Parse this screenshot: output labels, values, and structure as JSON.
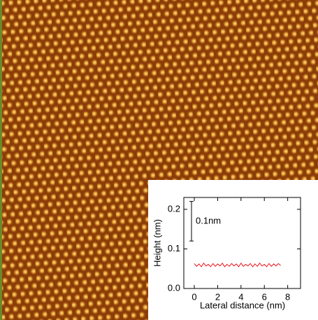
{
  "chart_data": {
    "type": "line",
    "x_label": "Lateral distance (nm)",
    "y_label": "Height (nm)",
    "x": [
      0,
      0.2,
      0.4,
      0.6,
      0.8,
      1.0,
      1.2,
      1.4,
      1.6,
      1.8,
      2.0,
      2.2,
      2.4,
      2.6,
      2.8,
      3.0,
      3.2,
      3.4,
      3.6,
      3.8,
      4.0,
      4.2,
      4.4,
      4.6,
      4.8,
      5.0,
      5.2,
      5.4,
      5.6,
      5.8,
      6.0,
      6.2,
      6.4,
      6.6,
      6.8,
      7.0,
      7.2,
      7.4
    ],
    "series": [
      {
        "color": "#e8141c",
        "values": [
          0.063,
          0.056,
          0.062,
          0.055,
          0.064,
          0.057,
          0.061,
          0.055,
          0.063,
          0.056,
          0.062,
          0.057,
          0.064,
          0.055,
          0.061,
          0.056,
          0.063,
          0.057,
          0.062,
          0.055,
          0.064,
          0.056,
          0.061,
          0.057,
          0.063,
          0.055,
          0.062,
          0.056,
          0.064,
          0.057,
          0.061,
          0.055,
          0.063,
          0.056,
          0.062,
          0.057,
          0.063,
          0.058
        ]
      }
    ],
    "xlim": [
      -0.9,
      9.1
    ],
    "ylim": [
      0,
      0.23
    ],
    "xticks": [
      0,
      2,
      4,
      6,
      8
    ],
    "yticks": [
      {
        "value": 0,
        "label": "0.0"
      },
      0.1,
      0.2
    ],
    "scale_bar": {
      "value": 0.1,
      "label": "0.1nm"
    }
  }
}
